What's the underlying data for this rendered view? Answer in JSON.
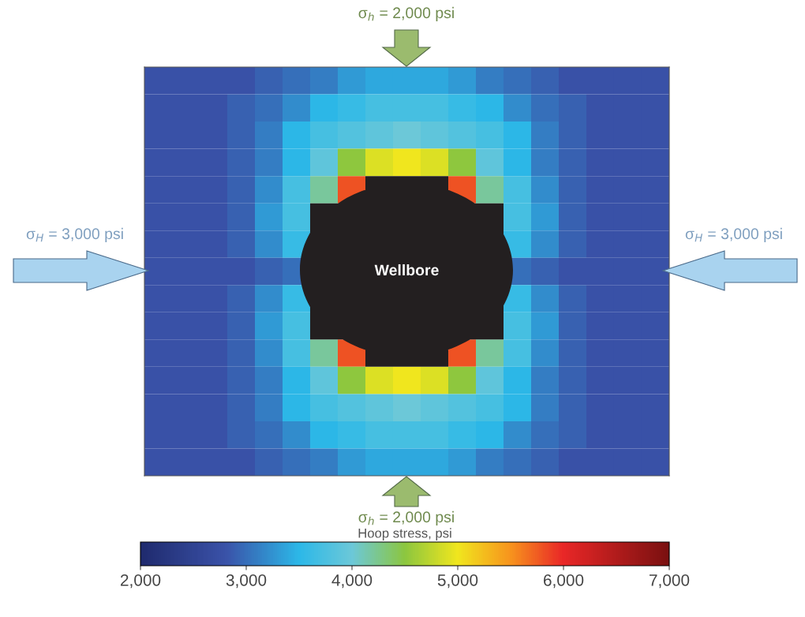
{
  "chart_data": {
    "type": "heatmap",
    "clabel": "Hoop stress, psi",
    "clim": [
      2000,
      7000
    ],
    "cticks": [
      {
        "value": 2000,
        "label": "2,000"
      },
      {
        "value": 3000,
        "label": "3,000"
      },
      {
        "value": 4000,
        "label": "4,000"
      },
      {
        "value": 5000,
        "label": "5,000"
      },
      {
        "value": 6000,
        "label": "6,000"
      },
      {
        "value": 7000,
        "label": "7,000"
      }
    ],
    "annotations": [
      "σ$_{h}$ = 2,000 psi",
      "σ$_{H}$ = 3,000 psi",
      "σ$_{H}$ = 3,000 psi",
      "σ$_{h}$ = 2,000 psi",
      "Wellbore"
    ],
    "categories": [
      null,
      null,
      null,
      null,
      null,
      null,
      null,
      null,
      null,
      null,
      null,
      null,
      null,
      null,
      null,
      null,
      null,
      null,
      null
    ],
    "y_categories": [
      null,
      null,
      null,
      null,
      null,
      null,
      null,
      null,
      null,
      null,
      null,
      null,
      null,
      null,
      null
    ],
    "cells": [
      [
        2800,
        2800,
        2800,
        2800,
        2900,
        3000,
        3100,
        3300,
        3400,
        3400,
        3400,
        3300,
        3100,
        3000,
        2900,
        2800,
        2800,
        2800,
        2800
      ],
      [
        2800,
        2800,
        2800,
        2900,
        3000,
        3200,
        3500,
        3600,
        3700,
        3700,
        3700,
        3600,
        3500,
        3200,
        3000,
        2900,
        2800,
        2800,
        2800
      ],
      [
        2800,
        2800,
        2800,
        2900,
        3100,
        3500,
        3700,
        3800,
        3900,
        4000,
        3900,
        3800,
        3700,
        3500,
        3100,
        2900,
        2800,
        2800,
        2800
      ],
      [
        2800,
        2800,
        2800,
        2900,
        3100,
        3500,
        3900,
        4500,
        4900,
        5000,
        4900,
        4500,
        3900,
        3500,
        3100,
        2900,
        2800,
        2800,
        2800
      ],
      [
        2800,
        2800,
        2800,
        2900,
        3200,
        3700,
        4200,
        5800,
        null,
        null,
        null,
        5800,
        4200,
        3700,
        3200,
        2900,
        2800,
        2800,
        2800
      ],
      [
        2800,
        2800,
        2800,
        2900,
        3300,
        3700,
        null,
        null,
        null,
        null,
        null,
        null,
        null,
        3700,
        3300,
        2900,
        2800,
        2800,
        2800
      ],
      [
        2800,
        2800,
        2800,
        2900,
        3200,
        3600,
        null,
        null,
        null,
        null,
        null,
        null,
        null,
        3600,
        3200,
        2900,
        2800,
        2800,
        2800
      ],
      [
        2800,
        2800,
        2800,
        2800,
        2900,
        3000,
        null,
        null,
        null,
        null,
        null,
        null,
        null,
        3000,
        2900,
        2800,
        2800,
        2800,
        2800
      ],
      [
        2800,
        2800,
        2800,
        2900,
        3200,
        3600,
        null,
        null,
        null,
        null,
        null,
        null,
        null,
        3600,
        3200,
        2900,
        2800,
        2800,
        2800
      ],
      [
        2800,
        2800,
        2800,
        2900,
        3300,
        3700,
        null,
        null,
        null,
        null,
        null,
        null,
        null,
        3700,
        3300,
        2900,
        2800,
        2800,
        2800
      ],
      [
        2800,
        2800,
        2800,
        2900,
        3200,
        3700,
        4200,
        5800,
        null,
        null,
        null,
        5800,
        4200,
        3700,
        3200,
        2900,
        2800,
        2800,
        2800
      ],
      [
        2800,
        2800,
        2800,
        2900,
        3100,
        3500,
        3900,
        4500,
        4900,
        5000,
        4900,
        4500,
        3900,
        3500,
        3100,
        2900,
        2800,
        2800,
        2800
      ],
      [
        2800,
        2800,
        2800,
        2900,
        3100,
        3500,
        3700,
        3800,
        3900,
        4000,
        3900,
        3800,
        3700,
        3500,
        3100,
        2900,
        2800,
        2800,
        2800
      ],
      [
        2800,
        2800,
        2800,
        2900,
        3000,
        3200,
        3500,
        3600,
        3700,
        3700,
        3700,
        3600,
        3500,
        3200,
        3000,
        2900,
        2800,
        2800,
        2800
      ],
      [
        2800,
        2800,
        2800,
        2800,
        2900,
        3000,
        3100,
        3300,
        3400,
        3400,
        3400,
        3300,
        3100,
        3000,
        2900,
        2800,
        2800,
        2800,
        2800
      ]
    ]
  }
}
